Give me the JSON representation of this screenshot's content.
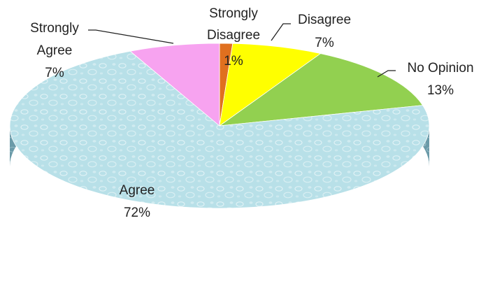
{
  "chart_data": {
    "type": "pie",
    "title": "",
    "start_angle_deg": 90,
    "direction": "clockwise",
    "slices": [
      {
        "label": "Strongly Disagree",
        "value": 1,
        "value_label": "1%",
        "color": "#e0701f",
        "side_color": "#9a4a12"
      },
      {
        "label": "Disagree",
        "value": 7,
        "value_label": "7%",
        "color": "#ffff00",
        "side_color": "#b0b000"
      },
      {
        "label": "No Opinion",
        "value": 13,
        "value_label": "13%",
        "color": "#92d050",
        "side_color": "#5d8a2e"
      },
      {
        "label": "Agree",
        "value": 72,
        "value_label": "72%",
        "color": "#b8e0e8",
        "side_color": "#6a9aa8"
      },
      {
        "label": "Strongly Agree",
        "value": 7,
        "value_label": "7%",
        "color": "#f7a3f0",
        "side_color": "#a862a0"
      }
    ]
  }
}
